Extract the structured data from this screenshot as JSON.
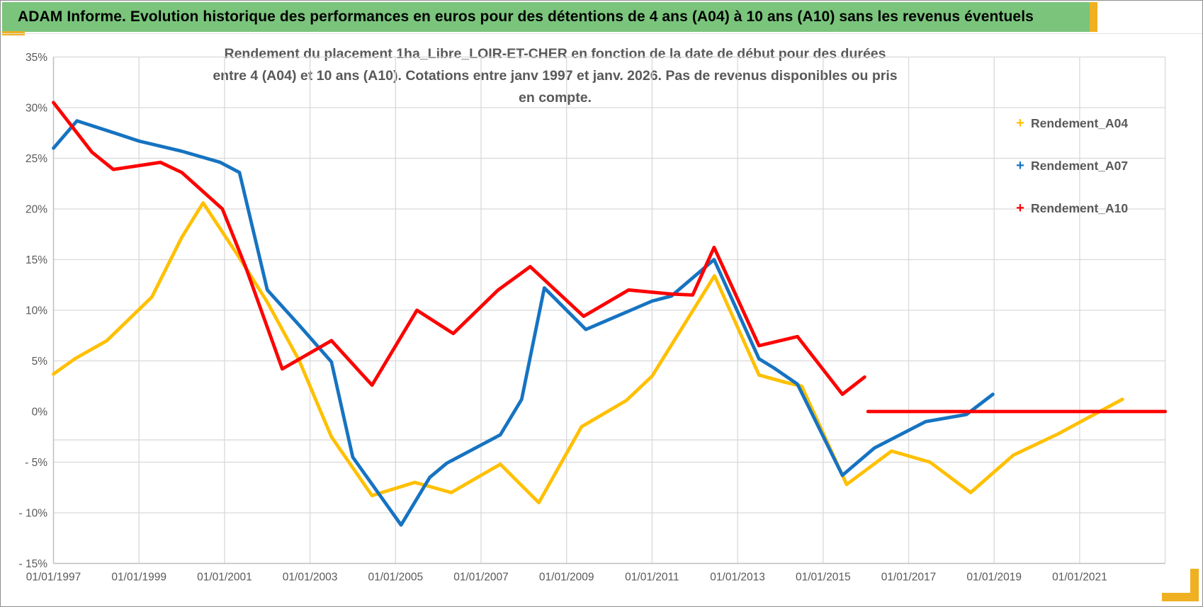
{
  "header": {
    "title": "ADAM Informe. Evolution historique des performances en euros pour des détentions de 4 ans (A04) à 10 ans (A10) sans les revenus éventuels"
  },
  "colors": {
    "header_bg": "#7ac47c",
    "accent_gold": "#efb022",
    "grid": "#d9d9d9",
    "axis_line": "#bfbfbf",
    "axis_text": "#595959",
    "title_text": "#595959",
    "series_a04": "#ffc000",
    "series_a07": "#1673c1",
    "series_a10": "#fd0000"
  },
  "chart_data": {
    "type": "line",
    "title_lines": [
      "Rendement du placement 1ha_Libre_LOIR-ET-CHER en fonction de la date de début pour des durées",
      "entre 4 (A04) et 10 ans (A10). Cotations entre janv 1997 et janv. 2026. Pas de revenus disponibles ou pris en compte."
    ],
    "x_axis": {
      "tick_labels": [
        "01/01/1997",
        "01/01/1999",
        "01/01/2001",
        "01/01/2003",
        "01/01/2005",
        "01/01/2007",
        "01/01/2009",
        "01/01/2011",
        "01/01/2013",
        "01/01/2015",
        "01/01/2017",
        "01/01/2019",
        "01/01/2021"
      ],
      "tick_years": [
        1997,
        1999,
        2001,
        2003,
        2005,
        2007,
        2009,
        2011,
        2013,
        2015,
        2017,
        2019,
        2021
      ],
      "gridline_years": [
        1997,
        1999,
        2001,
        2003,
        2005,
        2007,
        2009,
        2011,
        2013,
        2015,
        2017,
        2019,
        2021,
        2023
      ],
      "range_years": [
        1997,
        2023
      ]
    },
    "y_axis": {
      "tick_labels": [
        "35%",
        "30%",
        "25%",
        "20%",
        "15%",
        "10%",
        "5%",
        "0%",
        "- 5%",
        "- 10%",
        "- 15%"
      ],
      "tick_values": [
        35,
        30,
        25,
        20,
        15,
        10,
        5,
        0,
        -5,
        -10,
        -15
      ],
      "gridline_values": [
        35,
        30,
        25,
        20,
        15,
        10,
        5,
        -5,
        -10,
        -15
      ],
      "extra_gridline_value": -2.8,
      "range": [
        -15,
        35
      ]
    },
    "legend": [
      {
        "label": "Rendement_A04",
        "marker": "+",
        "color": "#ffc000"
      },
      {
        "label": "Rendement_A07",
        "marker": "+",
        "color": "#1673c1"
      },
      {
        "label": "Rendement_A10",
        "marker": "+",
        "color": "#fd0000"
      }
    ],
    "legend_position": "right-top",
    "grid": true,
    "series": [
      {
        "id": "a04",
        "name": "Rendement_A04",
        "color": "#ffc000",
        "points": [
          [
            1997.0,
            3.7
          ],
          [
            1997.5,
            5.2
          ],
          [
            1998.25,
            7.0
          ],
          [
            1999.3,
            11.3
          ],
          [
            2000.0,
            17.2
          ],
          [
            2000.5,
            20.6
          ],
          [
            2001.3,
            15.5
          ],
          [
            2002.0,
            10.8
          ],
          [
            2002.75,
            5.0
          ],
          [
            2003.5,
            -2.5
          ],
          [
            2004.45,
            -8.3
          ],
          [
            2005.45,
            -7.0
          ],
          [
            2006.3,
            -8.0
          ],
          [
            2007.45,
            -5.2
          ],
          [
            2008.35,
            -9.0
          ],
          [
            2009.35,
            -1.5
          ],
          [
            2010.4,
            1.1
          ],
          [
            2011.0,
            3.5
          ],
          [
            2012.46,
            13.4
          ],
          [
            2013.5,
            3.6
          ],
          [
            2014.1,
            2.9
          ],
          [
            2014.5,
            2.5
          ],
          [
            2015.55,
            -7.2
          ],
          [
            2016.6,
            -3.9
          ],
          [
            2017.5,
            -5.0
          ],
          [
            2018.45,
            -8.0
          ],
          [
            2019.45,
            -4.3
          ],
          [
            2020.5,
            -2.2
          ],
          [
            2021.2,
            -0.6
          ],
          [
            2022.0,
            1.2
          ]
        ]
      },
      {
        "id": "a07",
        "name": "Rendement_A07",
        "color": "#1673c1",
        "points": [
          [
            1997.0,
            26.0
          ],
          [
            1997.55,
            28.7
          ],
          [
            1998.5,
            27.4
          ],
          [
            1999.0,
            26.7
          ],
          [
            2000.0,
            25.7
          ],
          [
            2000.9,
            24.6
          ],
          [
            2001.35,
            23.6
          ],
          [
            2002.0,
            12.0
          ],
          [
            2002.75,
            8.5
          ],
          [
            2003.5,
            4.9
          ],
          [
            2004.0,
            -4.5
          ],
          [
            2005.13,
            -11.2
          ],
          [
            2005.8,
            -6.5
          ],
          [
            2006.2,
            -5.1
          ],
          [
            2007.45,
            -2.3
          ],
          [
            2007.95,
            1.2
          ],
          [
            2008.48,
            12.2
          ],
          [
            2009.45,
            8.1
          ],
          [
            2011.0,
            10.9
          ],
          [
            2011.45,
            11.4
          ],
          [
            2012.45,
            15.0
          ],
          [
            2013.5,
            5.2
          ],
          [
            2013.85,
            4.3
          ],
          [
            2014.4,
            2.7
          ],
          [
            2015.45,
            -6.3
          ],
          [
            2016.2,
            -3.6
          ],
          [
            2017.4,
            -1.0
          ],
          [
            2018.35,
            -0.3
          ],
          [
            2018.97,
            1.7
          ]
        ]
      },
      {
        "id": "a10",
        "name": "Rendement_A10",
        "color": "#fd0000",
        "points": [
          [
            1997.0,
            30.5
          ],
          [
            1997.9,
            25.6
          ],
          [
            1998.4,
            23.9
          ],
          [
            1999.5,
            24.6
          ],
          [
            2000.0,
            23.6
          ],
          [
            2000.45,
            21.9
          ],
          [
            2000.95,
            20.0
          ],
          [
            2001.5,
            14.2
          ],
          [
            2002.35,
            4.2
          ],
          [
            2003.5,
            7.0
          ],
          [
            2004.45,
            2.6
          ],
          [
            2005.5,
            10.0
          ],
          [
            2006.35,
            7.7
          ],
          [
            2007.4,
            12.0
          ],
          [
            2008.15,
            14.3
          ],
          [
            2009.4,
            9.4
          ],
          [
            2010.45,
            12.0
          ],
          [
            2011.45,
            11.6
          ],
          [
            2011.95,
            11.5
          ],
          [
            2012.45,
            16.2
          ],
          [
            2013.5,
            6.5
          ],
          [
            2014.4,
            7.4
          ],
          [
            2015.45,
            1.7
          ],
          [
            2015.97,
            3.4
          ]
        ]
      },
      {
        "id": "a10-zero",
        "name": "Rendement_A10",
        "color": "#fd0000",
        "points": [
          [
            2016.05,
            0.0
          ],
          [
            2023.0,
            0.0
          ]
        ]
      }
    ]
  }
}
